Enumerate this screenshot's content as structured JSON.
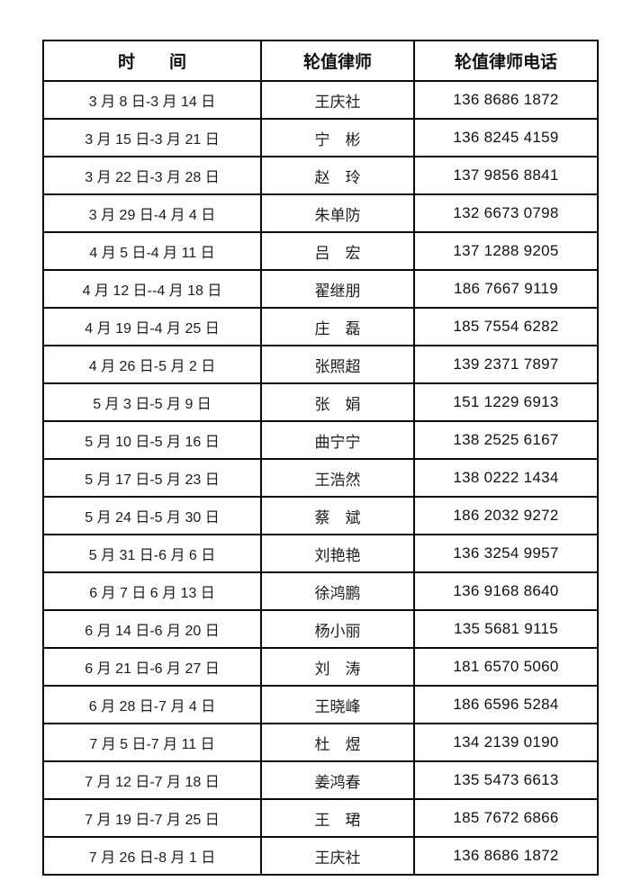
{
  "page": {
    "background_color": "#ffffff",
    "border_color": "#0a0a0a",
    "text_color": "#141414"
  },
  "table": {
    "columns": [
      "时　　间",
      "轮值律师",
      "轮值律师电话"
    ],
    "rows": [
      {
        "time": "3 月 8 日-3 月 14 日",
        "lawyer": "王庆社",
        "phone": "136 8686 1872"
      },
      {
        "time": "3 月 15 日-3 月 21 日",
        "lawyer": "宁　彬",
        "phone": "136 8245 4159"
      },
      {
        "time": "3 月 22 日-3 月 28 日",
        "lawyer": "赵　玲",
        "phone": "137 9856 8841"
      },
      {
        "time": "3 月 29 日-4 月 4 日",
        "lawyer": "朱单防",
        "phone": "132 6673 0798"
      },
      {
        "time": "4 月 5 日-4 月 11 日",
        "lawyer": "吕　宏",
        "phone": "137 1288 9205"
      },
      {
        "time": "4 月 12 日--4 月 18 日",
        "lawyer": "翟继朋",
        "phone": "186 7667 9119"
      },
      {
        "time": "4 月 19 日-4 月 25 日",
        "lawyer": "庄　磊",
        "phone": "185 7554 6282"
      },
      {
        "time": "4 月 26 日-5 月 2 日",
        "lawyer": "张照超",
        "phone": "139 2371 7897"
      },
      {
        "time": "5 月 3 日-5 月 9 日",
        "lawyer": "张　娟",
        "phone": "151 1229 6913"
      },
      {
        "time": "5 月 10 日-5 月 16 日",
        "lawyer": "曲宁宁",
        "phone": "138 2525 6167"
      },
      {
        "time": "5 月 17 日-5 月 23 日",
        "lawyer": "王浩然",
        "phone": "138 0222 1434"
      },
      {
        "time": "5 月 24 日-5 月 30 日",
        "lawyer": "蔡　斌",
        "phone": "186 2032 9272"
      },
      {
        "time": "5 月 31 日-6 月 6 日",
        "lawyer": "刘艳艳",
        "phone": "136 3254 9957"
      },
      {
        "time": "6 月 7 日 6 月 13 日",
        "lawyer": "徐鸿鹏",
        "phone": "136 9168 8640"
      },
      {
        "time": "6 月 14 日-6 月 20 日",
        "lawyer": "杨小丽",
        "phone": "135 5681 9115"
      },
      {
        "time": "6 月 21 日-6 月 27 日",
        "lawyer": "刘　涛",
        "phone": "181 6570 5060"
      },
      {
        "time": "6 月 28 日-7 月 4 日",
        "lawyer": "王晓峰",
        "phone": "186 6596 5284"
      },
      {
        "time": "7 月 5 日-7 月 11 日",
        "lawyer": "杜　煜",
        "phone": "134 2139 0190"
      },
      {
        "time": "7 月 12 日-7 月 18 日",
        "lawyer": "姜鸿春",
        "phone": "135 5473 6613"
      },
      {
        "time": "7 月 19 日-7 月 25 日",
        "lawyer": "王　珺",
        "phone": "185 7672 6866"
      },
      {
        "time": "7 月 26 日-8 月 1 日",
        "lawyer": "王庆社",
        "phone": "136 8686 1872"
      }
    ]
  }
}
